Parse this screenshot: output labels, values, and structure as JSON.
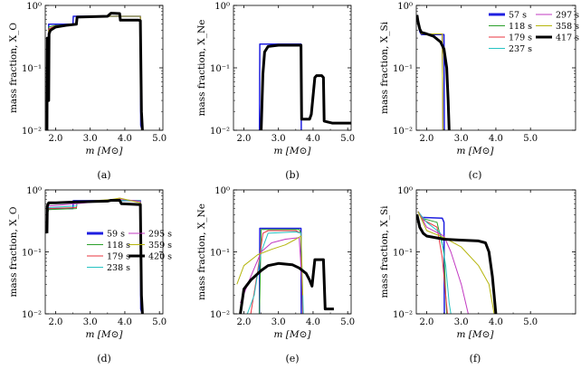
{
  "legend_top": [
    {
      "label": "57 s",
      "color": "#1f1fe0",
      "width": 3
    },
    {
      "label": "118 s",
      "color": "#2ca02c",
      "width": 1
    },
    {
      "label": "179 s",
      "color": "#e8343f",
      "width": 1
    },
    {
      "label": "237 s",
      "color": "#27c3c3",
      "width": 1
    },
    {
      "label": "297 s",
      "color": "#c239c2",
      "width": 1
    },
    {
      "label": "358 s",
      "color": "#b5b50c",
      "width": 1
    },
    {
      "label": "417 s",
      "color": "#000000",
      "width": 3
    }
  ],
  "legend_bottom": [
    {
      "label": "59 s",
      "color": "#1f1fe0",
      "width": 3
    },
    {
      "label": "118 s",
      "color": "#2ca02c",
      "width": 1
    },
    {
      "label": "179 s",
      "color": "#e8343f",
      "width": 1
    },
    {
      "label": "238 s",
      "color": "#27c3c3",
      "width": 1
    },
    {
      "label": "295 s",
      "color": "#c239c2",
      "width": 1
    },
    {
      "label": "359 s",
      "color": "#b5b50c",
      "width": 1
    },
    {
      "label": "420 s",
      "color": "#000000",
      "width": 3
    }
  ],
  "chart_data": [
    {
      "id": "a",
      "type": "line",
      "panel_label": "(a)",
      "xlabel": "m [M⊙]",
      "ylabel": "mass fraction, X_O",
      "xlim": [
        1.7,
        5.1
      ],
      "ylim": [
        0.01,
        1
      ],
      "yscale": "log",
      "xticks": [
        "2.0",
        "3.0",
        "4.0",
        "5.0"
      ],
      "yticks": [
        "10⁻²",
        "10⁻¹",
        "10⁰"
      ],
      "series": [
        {
          "name": "57 s",
          "color": "#1f1fe0",
          "width": 1.5,
          "x": [
            1.75,
            1.78,
            1.8,
            1.9,
            2.2,
            2.5,
            2.51,
            3.6,
            3.61,
            4.45,
            4.46,
            4.5
          ],
          "y": [
            0.012,
            0.08,
            0.5,
            0.5,
            0.5,
            0.5,
            0.67,
            0.67,
            0.67,
            0.67,
            0.012,
            0.01
          ]
        },
        {
          "name": "118 s",
          "color": "#2ca02c",
          "width": 1,
          "x": [
            1.75,
            1.8,
            2.0,
            2.3,
            2.6,
            2.62,
            3.6,
            4.45,
            4.5
          ],
          "y": [
            0.05,
            0.45,
            0.48,
            0.49,
            0.5,
            0.66,
            0.67,
            0.67,
            0.01
          ]
        },
        {
          "name": "179 s",
          "color": "#e8343f",
          "width": 1,
          "x": [
            1.75,
            1.8,
            2.0,
            2.3,
            2.6,
            2.62,
            3.6,
            4.45,
            4.5
          ],
          "y": [
            0.06,
            0.42,
            0.47,
            0.49,
            0.5,
            0.65,
            0.67,
            0.67,
            0.01
          ]
        },
        {
          "name": "237 s",
          "color": "#27c3c3",
          "width": 1,
          "x": [
            1.75,
            1.8,
            2.0,
            2.3,
            2.6,
            2.62,
            3.6,
            4.45,
            4.5
          ],
          "y": [
            0.06,
            0.4,
            0.46,
            0.48,
            0.5,
            0.65,
            0.67,
            0.67,
            0.01
          ]
        },
        {
          "name": "297 s",
          "color": "#c239c2",
          "width": 1,
          "x": [
            1.75,
            1.8,
            2.0,
            2.3,
            2.6,
            2.62,
            3.6,
            4.45,
            4.5
          ],
          "y": [
            0.07,
            0.4,
            0.46,
            0.48,
            0.5,
            0.65,
            0.67,
            0.67,
            0.01
          ]
        },
        {
          "name": "358 s",
          "color": "#b5b50c",
          "width": 1,
          "x": [
            1.75,
            1.8,
            2.0,
            2.3,
            2.6,
            2.62,
            3.6,
            4.45,
            4.5
          ],
          "y": [
            0.07,
            0.4,
            0.45,
            0.48,
            0.5,
            0.64,
            0.67,
            0.67,
            0.01
          ]
        },
        {
          "name": "417 s",
          "color": "#000000",
          "width": 3,
          "x": [
            1.75,
            1.76,
            1.8,
            1.81,
            1.85,
            2.0,
            2.3,
            2.6,
            2.62,
            3.5,
            3.6,
            3.62,
            3.85,
            3.87,
            4.4,
            4.45,
            4.48,
            4.51
          ],
          "y": [
            0.01,
            0.3,
            0.03,
            0.35,
            0.4,
            0.45,
            0.48,
            0.5,
            0.65,
            0.67,
            0.75,
            0.75,
            0.74,
            0.58,
            0.58,
            0.57,
            0.02,
            0.01
          ]
        }
      ]
    },
    {
      "id": "b",
      "type": "line",
      "panel_label": "(b)",
      "xlabel": "m [M⊙]",
      "ylabel": "mass fraction, X_Ne",
      "xlim": [
        1.7,
        5.1
      ],
      "ylim": [
        0.01,
        1
      ],
      "yscale": "log",
      "xticks": [
        "2.0",
        "3.0",
        "4.0",
        "5.0"
      ],
      "yticks": [
        "10⁻²",
        "10⁻¹",
        "10⁰"
      ],
      "series": [
        {
          "name": "57 s",
          "color": "#1f1fe0",
          "width": 1.5,
          "x": [
            2.45,
            2.46,
            3.65,
            3.66
          ],
          "y": [
            0.01,
            0.24,
            0.24,
            0.01
          ]
        },
        {
          "name": "417 s",
          "color": "#000000",
          "width": 3,
          "x": [
            2.5,
            2.55,
            2.6,
            2.7,
            3.0,
            3.6,
            3.65,
            3.67,
            3.9,
            3.95,
            4.05,
            4.1,
            4.25,
            4.3,
            4.32,
            4.55,
            5.1
          ],
          "y": [
            0.01,
            0.08,
            0.18,
            0.22,
            0.23,
            0.23,
            0.23,
            0.015,
            0.015,
            0.018,
            0.07,
            0.075,
            0.075,
            0.07,
            0.014,
            0.013,
            0.013
          ]
        }
      ]
    },
    {
      "id": "c",
      "type": "line",
      "panel_label": "(c)",
      "xlabel": "m [M⊙]",
      "ylabel": "mass fraction, X_Si",
      "xlim": [
        1.7,
        5.1
      ],
      "ylim": [
        0.01,
        1
      ],
      "yscale": "log",
      "xticks": [
        "2.0",
        "3.0",
        "4.0",
        "5.0"
      ],
      "yticks": [
        "10⁻²",
        "10⁻¹",
        "10⁰"
      ],
      "series": [
        {
          "name": "57 s",
          "color": "#1f1fe0",
          "width": 1.5,
          "x": [
            1.75,
            1.8,
            1.85,
            2.5,
            2.51
          ],
          "y": [
            0.55,
            0.38,
            0.34,
            0.34,
            0.01
          ]
        },
        {
          "name": "118 s",
          "color": "#2ca02c",
          "width": 1,
          "x": [
            1.75,
            1.85,
            2.45,
            2.47
          ],
          "y": [
            0.55,
            0.35,
            0.35,
            0.01
          ]
        },
        {
          "name": "179 s",
          "color": "#e8343f",
          "width": 1,
          "x": [
            1.75,
            1.85,
            2.45,
            2.47
          ],
          "y": [
            0.55,
            0.35,
            0.35,
            0.01
          ]
        },
        {
          "name": "237 s",
          "color": "#27c3c3",
          "width": 1,
          "x": [
            1.75,
            1.85,
            2.45,
            2.47
          ],
          "y": [
            0.55,
            0.35,
            0.35,
            0.01
          ]
        },
        {
          "name": "297 s",
          "color": "#c239c2",
          "width": 1,
          "x": [
            1.75,
            1.85,
            2.45,
            2.47
          ],
          "y": [
            0.55,
            0.35,
            0.35,
            0.01
          ]
        },
        {
          "name": "358 s",
          "color": "#b5b50c",
          "width": 1,
          "x": [
            1.75,
            1.85,
            2.45,
            2.47
          ],
          "y": [
            0.55,
            0.35,
            0.35,
            0.01
          ]
        },
        {
          "name": "417 s",
          "color": "#000000",
          "width": 3,
          "x": [
            1.72,
            1.75,
            1.8,
            1.85,
            2.0,
            2.2,
            2.4,
            2.5,
            2.58,
            2.62,
            2.65
          ],
          "y": [
            0.7,
            0.55,
            0.42,
            0.37,
            0.35,
            0.32,
            0.26,
            0.2,
            0.1,
            0.03,
            0.01
          ]
        }
      ]
    },
    {
      "id": "d",
      "type": "line",
      "panel_label": "(d)",
      "xlabel": "m [M⊙]",
      "ylabel": "mass fraction, X_O",
      "xlim": [
        1.7,
        5.1
      ],
      "ylim": [
        0.01,
        1
      ],
      "yscale": "log",
      "xticks": [
        "2.0",
        "3.0",
        "4.0",
        "5.0"
      ],
      "yticks": [
        "10⁻²",
        "10⁻¹",
        "10⁰"
      ],
      "series": [
        {
          "name": "59 s",
          "color": "#1f1fe0",
          "width": 1.5,
          "x": [
            1.75,
            1.8,
            2.5,
            2.51,
            3.6,
            3.61,
            4.45,
            4.46,
            4.5
          ],
          "y": [
            0.4,
            0.5,
            0.5,
            0.67,
            0.67,
            0.67,
            0.67,
            0.012,
            0.01
          ]
        },
        {
          "name": "118 s",
          "color": "#2ca02c",
          "width": 1,
          "x": [
            1.75,
            1.8,
            2.6,
            2.62,
            3.6,
            4.45,
            4.5
          ],
          "y": [
            0.4,
            0.48,
            0.5,
            0.66,
            0.67,
            0.67,
            0.01
          ]
        },
        {
          "name": "179 s",
          "color": "#e8343f",
          "width": 1,
          "x": [
            1.75,
            1.8,
            2.6,
            2.62,
            3.6,
            4.45,
            4.5
          ],
          "y": [
            0.42,
            0.5,
            0.52,
            0.64,
            0.67,
            0.67,
            0.01
          ]
        },
        {
          "name": "238 s",
          "color": "#27c3c3",
          "width": 1,
          "x": [
            1.75,
            1.8,
            2.6,
            2.62,
            3.6,
            4.45,
            4.5
          ],
          "y": [
            0.45,
            0.52,
            0.55,
            0.62,
            0.67,
            0.67,
            0.01
          ]
        },
        {
          "name": "295 s",
          "color": "#c239c2",
          "width": 1,
          "x": [
            1.75,
            1.8,
            2.6,
            3.6,
            3.8,
            4.45,
            4.5
          ],
          "y": [
            0.5,
            0.55,
            0.6,
            0.68,
            0.72,
            0.65,
            0.01
          ]
        },
        {
          "name": "359 s",
          "color": "#b5b50c",
          "width": 1,
          "x": [
            1.75,
            1.8,
            2.6,
            3.6,
            3.85,
            4.45,
            4.5
          ],
          "y": [
            0.55,
            0.6,
            0.64,
            0.7,
            0.74,
            0.62,
            0.01
          ]
        },
        {
          "name": "420 s",
          "color": "#000000",
          "width": 3,
          "x": [
            1.75,
            1.76,
            1.8,
            2.0,
            2.6,
            3.5,
            3.6,
            3.85,
            3.9,
            4.45,
            4.48,
            4.51
          ],
          "y": [
            0.2,
            0.55,
            0.62,
            0.62,
            0.64,
            0.66,
            0.68,
            0.68,
            0.6,
            0.58,
            0.02,
            0.01
          ]
        }
      ]
    },
    {
      "id": "e",
      "type": "line",
      "panel_label": "(e)",
      "xlabel": "m [M⊙]",
      "ylabel": "mass fraction, X_Ne",
      "xlim": [
        1.7,
        5.1
      ],
      "ylim": [
        0.01,
        1
      ],
      "yscale": "log",
      "xticks": [
        "2.0",
        "3.0",
        "4.0",
        "5.0"
      ],
      "yticks": [
        "10⁻²",
        "10⁻¹",
        "10⁰"
      ],
      "series": [
        {
          "name": "59 s",
          "color": "#1f1fe0",
          "width": 1.5,
          "x": [
            2.45,
            2.46,
            3.65,
            3.66
          ],
          "y": [
            0.01,
            0.24,
            0.24,
            0.01
          ]
        },
        {
          "name": "118 s",
          "color": "#2ca02c",
          "width": 1,
          "x": [
            2.45,
            2.5,
            3.6,
            3.65,
            3.7
          ],
          "y": [
            0.01,
            0.23,
            0.23,
            0.2,
            0.01
          ]
        },
        {
          "name": "179 s",
          "color": "#e8343f",
          "width": 1,
          "x": [
            2.2,
            2.4,
            2.55,
            2.7,
            3.5,
            3.65,
            3.7
          ],
          "y": [
            0.01,
            0.05,
            0.2,
            0.22,
            0.22,
            0.2,
            0.01
          ]
        },
        {
          "name": "238 s",
          "color": "#27c3c3",
          "width": 1,
          "x": [
            2.1,
            2.3,
            2.5,
            2.7,
            3.5,
            3.65,
            3.72
          ],
          "y": [
            0.01,
            0.02,
            0.1,
            0.2,
            0.21,
            0.2,
            0.01
          ]
        },
        {
          "name": "295 s",
          "color": "#c239c2",
          "width": 1,
          "x": [
            1.9,
            2.2,
            2.5,
            2.8,
            3.2,
            3.6,
            3.7
          ],
          "y": [
            0.015,
            0.04,
            0.1,
            0.14,
            0.16,
            0.17,
            0.02
          ]
        },
        {
          "name": "359 s",
          "color": "#b5b50c",
          "width": 1,
          "x": [
            1.8,
            2.0,
            2.4,
            2.8,
            3.2,
            3.5,
            3.65,
            3.7
          ],
          "y": [
            0.03,
            0.06,
            0.09,
            0.11,
            0.13,
            0.16,
            0.18,
            0.02
          ]
        },
        {
          "name": "420 s",
          "color": "#000000",
          "width": 3,
          "x": [
            1.9,
            2.0,
            2.2,
            2.5,
            2.7,
            3.0,
            3.4,
            3.6,
            3.8,
            3.9,
            3.97,
            4.0,
            4.05,
            4.3,
            4.35,
            4.6
          ],
          "y": [
            0.01,
            0.025,
            0.035,
            0.05,
            0.06,
            0.065,
            0.062,
            0.055,
            0.045,
            0.035,
            0.028,
            0.04,
            0.075,
            0.075,
            0.012,
            0.012
          ]
        }
      ]
    },
    {
      "id": "f",
      "type": "line",
      "panel_label": "(f)",
      "xlabel": "m [M⊙]",
      "ylabel": "mass fraction, X_Si",
      "xlim": [
        1.7,
        5.1
      ],
      "ylim": [
        0.01,
        1
      ],
      "yscale": "log",
      "xticks": [
        "2.0",
        "3.0",
        "4.0",
        "5.0"
      ],
      "yticks": [
        "10⁻²",
        "10⁻¹",
        "10⁰"
      ],
      "series": [
        {
          "name": "59 s",
          "color": "#1f1fe0",
          "width": 1.5,
          "x": [
            1.75,
            1.85,
            2.45,
            2.5,
            2.51
          ],
          "y": [
            0.45,
            0.36,
            0.35,
            0.3,
            0.01
          ]
        },
        {
          "name": "118 s",
          "color": "#2ca02c",
          "width": 1,
          "x": [
            1.75,
            1.85,
            2.3,
            2.5,
            2.55,
            2.58
          ],
          "y": [
            0.45,
            0.35,
            0.3,
            0.1,
            0.02,
            0.01
          ]
        },
        {
          "name": "179 s",
          "color": "#e8343f",
          "width": 1,
          "x": [
            1.75,
            1.9,
            2.3,
            2.45,
            2.55,
            2.6
          ],
          "y": [
            0.45,
            0.33,
            0.25,
            0.08,
            0.02,
            0.01
          ]
        },
        {
          "name": "238 s",
          "color": "#27c3c3",
          "width": 1,
          "x": [
            1.75,
            2.0,
            2.4,
            2.55,
            2.65,
            2.7
          ],
          "y": [
            0.45,
            0.3,
            0.2,
            0.06,
            0.015,
            0.01
          ]
        },
        {
          "name": "295 s",
          "color": "#c239c2",
          "width": 1,
          "x": [
            1.75,
            2.0,
            2.5,
            2.7,
            3.0,
            3.2
          ],
          "y": [
            0.45,
            0.25,
            0.18,
            0.1,
            0.03,
            0.01
          ]
        },
        {
          "name": "359 s",
          "color": "#b5b50c",
          "width": 1,
          "x": [
            1.75,
            2.0,
            2.5,
            3.0,
            3.5,
            3.8,
            3.95
          ],
          "y": [
            0.45,
            0.22,
            0.17,
            0.12,
            0.06,
            0.03,
            0.01
          ]
        },
        {
          "name": "420 s",
          "color": "#000000",
          "width": 3,
          "x": [
            1.72,
            1.8,
            1.9,
            2.0,
            2.5,
            3.0,
            3.5,
            3.7,
            3.8,
            3.9,
            3.95,
            4.0
          ],
          "y": [
            0.4,
            0.25,
            0.2,
            0.18,
            0.16,
            0.155,
            0.15,
            0.14,
            0.1,
            0.04,
            0.02,
            0.01
          ]
        }
      ]
    }
  ]
}
